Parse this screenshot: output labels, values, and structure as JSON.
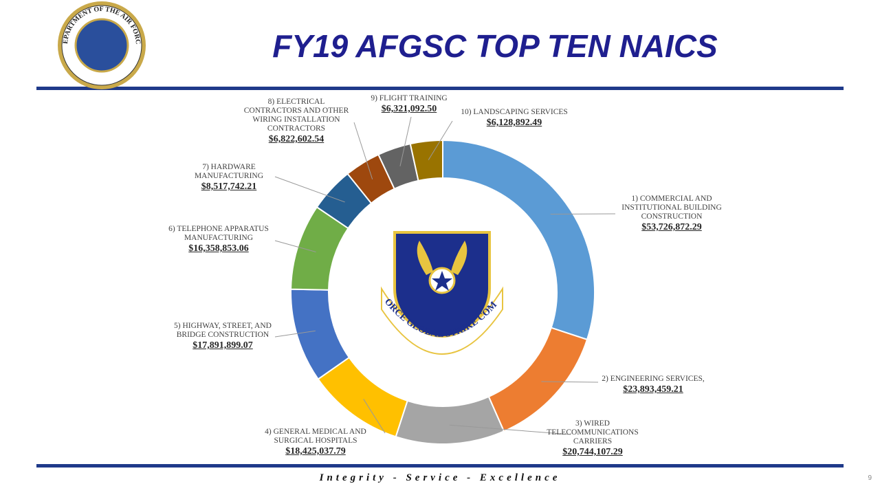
{
  "chart_data": {
    "type": "donut",
    "title": "FY19 AFGSC TOP TEN NAICS",
    "categories": [
      "1) COMMERCIAL AND INSTITUTIONAL BUILDING CONSTRUCTION",
      "2) ENGINEERING SERVICES,",
      "3) WIRED TELECOMMUNICATIONS CARRIERS",
      "4) GENERAL MEDICAL AND SURGICAL HOSPITALS",
      "5) HIGHWAY, STREET, AND BRIDGE CONSTRUCTION",
      "6) TELEPHONE APPARATUS MANUFACTURING",
      "7) HARDWARE MANUFACTURING",
      "8) ELECTRICAL CONTRACTORS AND OTHER WIRING INSTALLATION CONTRACTORS",
      "9) FLIGHT TRAINING",
      "10) LANDSCAPING SERVICES"
    ],
    "values": [
      53726872.29,
      23893459.21,
      20744107.29,
      18425037.79,
      17891899.07,
      16358853.06,
      8517742.21,
      6822602.54,
      6321092.5,
      6128892.49
    ],
    "value_labels": [
      "$53,726,872.29",
      "$23,893,459.21",
      "$20,744,107.29",
      "$18,425,037.79",
      "$17,891,899.07",
      "$16,358,853.06",
      "$8,517,742.21",
      "$6,822,602.54",
      "$6,321,092.50",
      "$6,128,892.49"
    ],
    "colors": [
      "#5b9bd5",
      "#ed7d31",
      "#a5a5a5",
      "#ffc000",
      "#4472c4",
      "#70ad47",
      "#255e91",
      "#9e480e",
      "#636363",
      "#997300"
    ]
  },
  "slide": {
    "seal_text": "DEPARTMENT OF THE AIR FORCE",
    "emblem_text": "AIR FORCE GLOBAL STRIKE COMMAND",
    "footer": "Integrity - Service - Excellence",
    "page_number": "9"
  }
}
